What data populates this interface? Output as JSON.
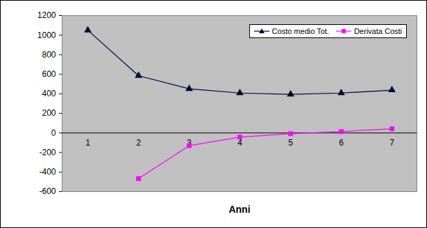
{
  "chart_data": {
    "type": "line",
    "x_label": "Anni",
    "categories": [
      "1",
      "2",
      "3",
      "4",
      "5",
      "6",
      "7"
    ],
    "series": [
      {
        "name": "Costo medio Tot.",
        "color": "#000033",
        "marker": "triangle",
        "values": [
          1050,
          585,
          452,
          408,
          395,
          408,
          438
        ]
      },
      {
        "name": "Derivata Costi",
        "color": "#ff00ff",
        "marker": "square",
        "values": [
          null,
          -467,
          -130,
          -43,
          -8,
          14,
          42
        ]
      }
    ],
    "ylim": [
      -600,
      1200
    ],
    "yticks": [
      -600,
      -400,
      -200,
      0,
      200,
      400,
      600,
      800,
      1000,
      1200
    ],
    "grid": false,
    "legend": "top-right"
  }
}
